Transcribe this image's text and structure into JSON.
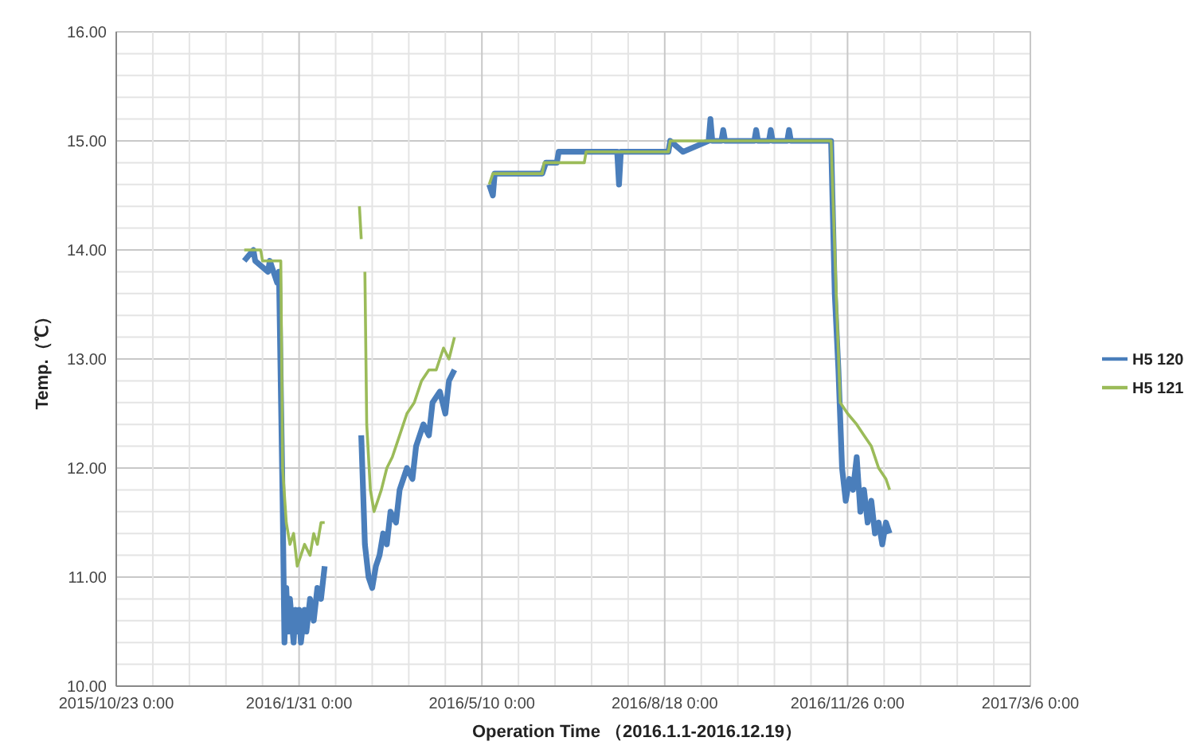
{
  "chart_data": {
    "type": "line",
    "xlabel": "Operation Time （2016.1.1-2016.12.19）",
    "ylabel": "Temp.（℃）",
    "xlim": [
      "2015-10-23",
      "2017-03-06"
    ],
    "xticks": [
      {
        "value": "2015-10-23",
        "label": "2015/10/23 0:00"
      },
      {
        "value": "2015-11-12",
        "label": null
      },
      {
        "value": "2015-12-02",
        "label": null
      },
      {
        "value": "2015-12-22",
        "label": null
      },
      {
        "value": "2016-01-11",
        "label": null
      },
      {
        "value": "2016-01-31",
        "label": "2016/1/31 0:00"
      },
      {
        "value": "2016-02-20",
        "label": null
      },
      {
        "value": "2016-03-11",
        "label": null
      },
      {
        "value": "2016-03-31",
        "label": null
      },
      {
        "value": "2016-04-20",
        "label": null
      },
      {
        "value": "2016-05-10",
        "label": "2016/5/10 0:00"
      },
      {
        "value": "2016-05-30",
        "label": null
      },
      {
        "value": "2016-06-19",
        "label": null
      },
      {
        "value": "2016-07-09",
        "label": null
      },
      {
        "value": "2016-07-29",
        "label": null
      },
      {
        "value": "2016-08-18",
        "label": "2016/8/18 0:00"
      },
      {
        "value": "2016-09-07",
        "label": null
      },
      {
        "value": "2016-09-27",
        "label": null
      },
      {
        "value": "2016-10-17",
        "label": null
      },
      {
        "value": "2016-11-06",
        "label": null
      },
      {
        "value": "2016-11-26",
        "label": "2016/11/26 0:00"
      },
      {
        "value": "2016-12-16",
        "label": null
      },
      {
        "value": "2017-01-05",
        "label": null
      },
      {
        "value": "2017-01-25",
        "label": null
      },
      {
        "value": "2017-02-14",
        "label": null
      },
      {
        "value": "2017-03-06",
        "label": "2017/3/6 0:00"
      }
    ],
    "ylim": [
      10,
      16
    ],
    "yticks": [
      {
        "value": 10,
        "label": "10.00"
      },
      {
        "value": 10.2,
        "label": null
      },
      {
        "value": 10.4,
        "label": null
      },
      {
        "value": 10.6,
        "label": null
      },
      {
        "value": 10.8,
        "label": null
      },
      {
        "value": 11,
        "label": "11.00"
      },
      {
        "value": 11.2,
        "label": null
      },
      {
        "value": 11.4,
        "label": null
      },
      {
        "value": 11.6,
        "label": null
      },
      {
        "value": 11.8,
        "label": null
      },
      {
        "value": 12,
        "label": "12.00"
      },
      {
        "value": 12.2,
        "label": null
      },
      {
        "value": 12.4,
        "label": null
      },
      {
        "value": 12.6,
        "label": null
      },
      {
        "value": 12.8,
        "label": null
      },
      {
        "value": 13,
        "label": "13.00"
      },
      {
        "value": 13.2,
        "label": null
      },
      {
        "value": 13.4,
        "label": null
      },
      {
        "value": 13.6,
        "label": null
      },
      {
        "value": 13.8,
        "label": null
      },
      {
        "value": 14,
        "label": "14.00"
      },
      {
        "value": 14.2,
        "label": null
      },
      {
        "value": 14.4,
        "label": null
      },
      {
        "value": 14.6,
        "label": null
      },
      {
        "value": 14.8,
        "label": null
      },
      {
        "value": 15,
        "label": "15.00"
      },
      {
        "value": 15.2,
        "label": null
      },
      {
        "value": 15.4,
        "label": null
      },
      {
        "value": 15.6,
        "label": null
      },
      {
        "value": 15.8,
        "label": null
      },
      {
        "value": 16,
        "label": "16.00"
      }
    ],
    "grid": true,
    "legend": "right",
    "line_style": "solid",
    "marker": "none",
    "series": [
      {
        "name": "H5 120",
        "color": "#4a7ebb",
        "x": [
          "2016-01-01",
          "2016-01-06",
          "2016-01-07",
          "2016-01-14",
          "2016-01-15",
          "2016-01-19",
          "2016-01-20",
          "2016-01-22",
          "2016-01-23",
          "2016-01-24",
          "2016-01-25",
          "2016-01-26",
          "2016-01-27",
          "2016-01-28",
          "2016-01-29",
          "2016-01-30",
          "2016-01-31",
          "2016-02-01",
          "2016-02-03",
          "2016-02-04",
          "2016-02-06",
          "2016-02-08",
          "2016-02-10",
          "2016-02-12",
          "2016-02-14",
          "2016-02-20",
          "2016-03-05",
          "2016-03-07",
          "2016-03-09",
          "2016-03-11",
          "2016-03-13",
          "2016-03-15",
          "2016-03-17",
          "2016-03-19",
          "2016-03-21",
          "2016-03-24",
          "2016-03-26",
          "2016-03-30",
          "2016-04-02",
          "2016-04-04",
          "2016-04-08",
          "2016-04-11",
          "2016-04-13",
          "2016-04-17",
          "2016-04-20",
          "2016-04-22",
          "2016-04-25",
          "2016-05-05",
          "2016-05-14",
          "2016-05-16",
          "2016-05-17",
          "2016-05-20",
          "2016-06-12",
          "2016-06-14",
          "2016-06-20",
          "2016-06-21",
          "2016-07-05",
          "2016-07-23",
          "2016-07-24",
          "2016-07-25",
          "2016-08-20",
          "2016-08-21",
          "2016-08-28",
          "2016-09-11",
          "2016-09-12",
          "2016-09-13",
          "2016-09-18",
          "2016-09-19",
          "2016-09-20",
          "2016-10-06",
          "2016-10-07",
          "2016-10-08",
          "2016-10-14",
          "2016-10-15",
          "2016-10-16",
          "2016-10-24",
          "2016-10-25",
          "2016-10-26",
          "2016-11-12",
          "2016-11-17",
          "2016-11-19",
          "2016-11-21",
          "2016-11-23",
          "2016-11-25",
          "2016-11-27",
          "2016-11-29",
          "2016-12-01",
          "2016-12-03",
          "2016-12-05",
          "2016-12-07",
          "2016-12-09",
          "2016-12-11",
          "2016-12-13",
          "2016-12-15",
          "2016-12-17",
          "2016-12-19"
        ],
        "values": [
          13.9,
          14.0,
          13.9,
          13.8,
          13.9,
          13.7,
          13.8,
          11.7,
          10.4,
          10.9,
          10.5,
          10.8,
          10.6,
          10.4,
          10.7,
          10.5,
          10.7,
          10.4,
          10.7,
          10.5,
          10.8,
          10.6,
          10.9,
          10.8,
          11.1,
          null,
          12.3,
          11.3,
          11.0,
          10.9,
          11.1,
          11.2,
          11.4,
          11.3,
          11.6,
          11.5,
          11.8,
          12.0,
          11.9,
          12.2,
          12.4,
          12.3,
          12.6,
          12.7,
          12.5,
          12.8,
          12.9,
          null,
          14.6,
          14.5,
          14.7,
          14.7,
          14.7,
          14.8,
          14.8,
          14.9,
          14.9,
          14.9,
          14.6,
          14.9,
          14.9,
          15.0,
          14.9,
          15.0,
          15.2,
          15.0,
          15.0,
          15.1,
          15.0,
          15.0,
          15.1,
          15.0,
          15.0,
          15.1,
          15.0,
          15.0,
          15.1,
          15.0,
          15.0,
          15.0,
          13.6,
          12.9,
          12.0,
          11.7,
          11.9,
          11.8,
          12.1,
          11.6,
          11.8,
          11.5,
          11.7,
          11.4,
          11.5,
          11.3,
          11.5,
          11.4
        ]
      },
      {
        "name": "H5 121",
        "color": "#9bbb59",
        "x": [
          "2016-01-01",
          "2016-01-10",
          "2016-01-11",
          "2016-01-21",
          "2016-01-22",
          "2016-01-24",
          "2016-01-26",
          "2016-01-28",
          "2016-01-30",
          "2016-02-01",
          "2016-02-03",
          "2016-02-06",
          "2016-02-08",
          "2016-02-10",
          "2016-02-12",
          "2016-02-14",
          "2016-02-20",
          "2016-03-04",
          "2016-03-05",
          "2016-03-06",
          "2016-03-07",
          "2016-03-08",
          "2016-03-10",
          "2016-03-12",
          "2016-03-14",
          "2016-03-16",
          "2016-03-19",
          "2016-03-22",
          "2016-03-26",
          "2016-03-30",
          "2016-04-03",
          "2016-04-07",
          "2016-04-11",
          "2016-04-15",
          "2016-04-19",
          "2016-04-22",
          "2016-04-25",
          "2016-05-05",
          "2016-05-14",
          "2016-05-16",
          "2016-06-12",
          "2016-06-13",
          "2016-07-05",
          "2016-07-06",
          "2016-08-20",
          "2016-08-21",
          "2016-11-12",
          "2016-11-17",
          "2016-11-20",
          "2016-11-22",
          "2016-11-26",
          "2016-12-01",
          "2016-12-05",
          "2016-12-09",
          "2016-12-13",
          "2016-12-17",
          "2016-12-19"
        ],
        "values": [
          14.0,
          14.0,
          13.9,
          13.9,
          12.0,
          11.5,
          11.3,
          11.4,
          11.1,
          11.2,
          11.3,
          11.2,
          11.4,
          11.3,
          11.5,
          11.5,
          null,
          14.4,
          14.1,
          null,
          13.8,
          12.4,
          11.8,
          11.6,
          11.7,
          11.8,
          12.0,
          12.1,
          12.3,
          12.5,
          12.6,
          12.8,
          12.9,
          12.9,
          13.1,
          13.0,
          13.2,
          null,
          14.6,
          14.7,
          14.7,
          14.8,
          14.8,
          14.9,
          14.9,
          15.0,
          15.0,
          15.0,
          13.5,
          12.6,
          12.5,
          12.4,
          12.3,
          12.2,
          12.0,
          11.9,
          11.8
        ]
      }
    ]
  }
}
